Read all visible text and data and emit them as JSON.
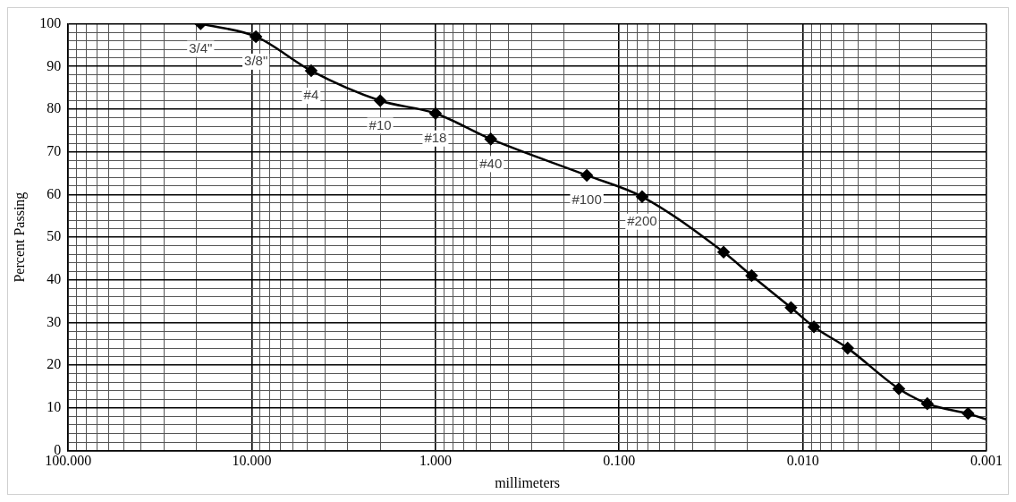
{
  "chart_data": {
    "type": "line",
    "xlabel": "millimeters",
    "ylabel": "Percent Passing",
    "log": "x",
    "grid": true,
    "legend": false,
    "marker": "diamond",
    "line_style": "solid",
    "xlim": [
      100,
      0.001
    ],
    "xticks": [
      {
        "value": 100,
        "label": "100.000"
      },
      {
        "value": 90,
        "label": null
      },
      {
        "value": 80,
        "label": null
      },
      {
        "value": 70,
        "label": null
      },
      {
        "value": 60,
        "label": null
      },
      {
        "value": 50,
        "label": null
      },
      {
        "value": 40,
        "label": null
      },
      {
        "value": 30,
        "label": null
      },
      {
        "value": 20,
        "label": null
      },
      {
        "value": 10,
        "label": "10.000"
      },
      {
        "value": 9,
        "label": null
      },
      {
        "value": 8,
        "label": null
      },
      {
        "value": 7,
        "label": null
      },
      {
        "value": 6,
        "label": null
      },
      {
        "value": 5,
        "label": null
      },
      {
        "value": 4,
        "label": null
      },
      {
        "value": 3,
        "label": null
      },
      {
        "value": 2,
        "label": null
      },
      {
        "value": 1,
        "label": "1.000"
      },
      {
        "value": 0.9,
        "label": null
      },
      {
        "value": 0.8,
        "label": null
      },
      {
        "value": 0.7,
        "label": null
      },
      {
        "value": 0.6,
        "label": null
      },
      {
        "value": 0.5,
        "label": null
      },
      {
        "value": 0.4,
        "label": null
      },
      {
        "value": 0.3,
        "label": null
      },
      {
        "value": 0.2,
        "label": null
      },
      {
        "value": 0.1,
        "label": "0.100"
      },
      {
        "value": 0.09,
        "label": null
      },
      {
        "value": 0.08,
        "label": null
      },
      {
        "value": 0.07,
        "label": null
      },
      {
        "value": 0.06,
        "label": null
      },
      {
        "value": 0.05,
        "label": null
      },
      {
        "value": 0.04,
        "label": null
      },
      {
        "value": 0.03,
        "label": null
      },
      {
        "value": 0.02,
        "label": null
      },
      {
        "value": 0.01,
        "label": "0.010"
      },
      {
        "value": 0.009,
        "label": null
      },
      {
        "value": 0.008,
        "label": null
      },
      {
        "value": 0.007,
        "label": null
      },
      {
        "value": 0.006,
        "label": null
      },
      {
        "value": 0.005,
        "label": null
      },
      {
        "value": 0.004,
        "label": null
      },
      {
        "value": 0.003,
        "label": null
      },
      {
        "value": 0.002,
        "label": null
      },
      {
        "value": 0.001,
        "label": "0.001"
      }
    ],
    "ylim": [
      0,
      100
    ],
    "yticks": [
      0,
      {
        "value": 2,
        "label": null
      },
      {
        "value": 4,
        "label": null
      },
      {
        "value": 6,
        "label": null
      },
      {
        "value": 8,
        "label": null
      },
      10,
      {
        "value": 12,
        "label": null
      },
      {
        "value": 14,
        "label": null
      },
      {
        "value": 16,
        "label": null
      },
      {
        "value": 18,
        "label": null
      },
      20,
      {
        "value": 22,
        "label": null
      },
      {
        "value": 24,
        "label": null
      },
      {
        "value": 26,
        "label": null
      },
      {
        "value": 28,
        "label": null
      },
      30,
      {
        "value": 32,
        "label": null
      },
      {
        "value": 34,
        "label": null
      },
      {
        "value": 36,
        "label": null
      },
      {
        "value": 38,
        "label": null
      },
      40,
      {
        "value": 42,
        "label": null
      },
      {
        "value": 44,
        "label": null
      },
      {
        "value": 46,
        "label": null
      },
      {
        "value": 48,
        "label": null
      },
      50,
      {
        "value": 52,
        "label": null
      },
      {
        "value": 54,
        "label": null
      },
      {
        "value": 56,
        "label": null
      },
      {
        "value": 58,
        "label": null
      },
      60,
      {
        "value": 62,
        "label": null
      },
      {
        "value": 64,
        "label": null
      },
      {
        "value": 66,
        "label": null
      },
      {
        "value": 68,
        "label": null
      },
      70,
      {
        "value": 72,
        "label": null
      },
      {
        "value": 74,
        "label": null
      },
      {
        "value": 76,
        "label": null
      },
      {
        "value": 78,
        "label": null
      },
      80,
      {
        "value": 82,
        "label": null
      },
      {
        "value": 84,
        "label": null
      },
      {
        "value": 86,
        "label": null
      },
      {
        "value": 88,
        "label": null
      },
      90,
      {
        "value": 92,
        "label": null
      },
      {
        "value": 94,
        "label": null
      },
      {
        "value": 96,
        "label": null
      },
      {
        "value": 98,
        "label": null
      },
      100
    ],
    "series": [
      {
        "color": "#000000",
        "x": [
          19,
          9.5,
          4.75,
          2,
          1,
          0.5,
          0.15,
          0.075,
          0.027,
          0.019,
          0.0116,
          0.0087,
          0.0057,
          0.003,
          0.0021,
          0.00126
        ],
        "values": [
          100,
          97,
          89,
          82,
          79,
          73,
          64.5,
          59.5,
          46.5,
          41,
          33.5,
          29,
          24,
          14.5,
          11,
          8.7
        ]
      },
      {
        "color": "#000000",
        "marker": "none",
        "x": [
          0.00126,
          0.001
        ],
        "values": [
          8.7,
          7.3
        ]
      }
    ],
    "annotations": [
      {
        "text": "3/4\"",
        "x": 19,
        "y": 100
      },
      {
        "text": "3/8\"",
        "x": 9.5,
        "y": 97
      },
      {
        "text": "#4",
        "x": 4.75,
        "y": 89
      },
      {
        "text": "#10",
        "x": 2,
        "y": 82
      },
      {
        "text": "#18",
        "x": 1,
        "y": 79
      },
      {
        "text": "#40",
        "x": 0.5,
        "y": 73
      },
      {
        "text": "#100",
        "x": 0.15,
        "y": 64.5
      },
      {
        "text": "#200",
        "x": 0.075,
        "y": 59.5
      }
    ]
  }
}
